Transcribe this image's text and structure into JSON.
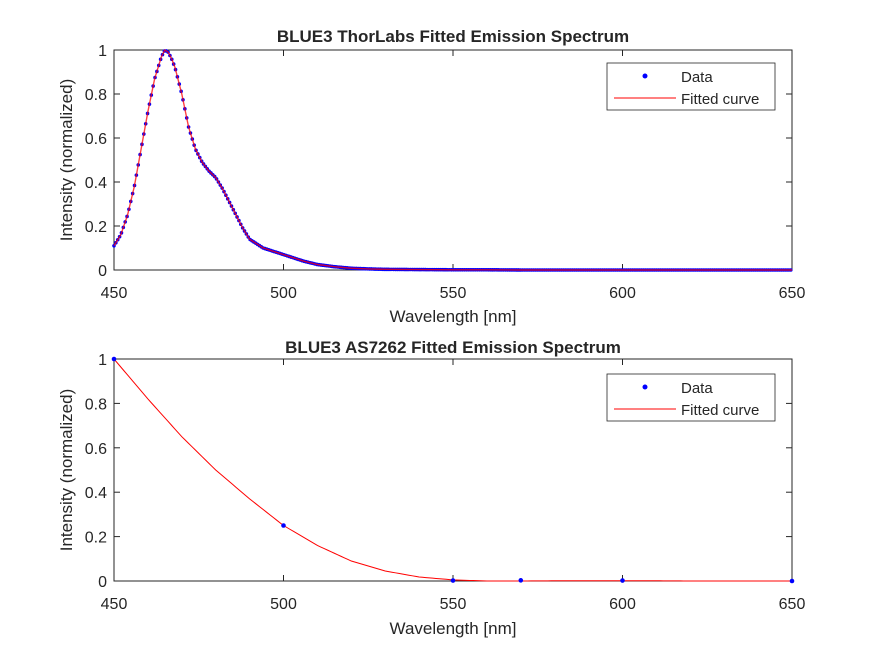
{
  "chart_data": [
    {
      "type": "line",
      "title": "BLUE3 ThorLabs Fitted Emission Spectrum",
      "xlabel": "Wavelength [nm]",
      "ylabel": "Intensity (normalized)",
      "xlim": [
        450,
        650
      ],
      "ylim": [
        0,
        1
      ],
      "xticks": [
        450,
        500,
        550,
        600,
        650
      ],
      "yticks": [
        0,
        0.2,
        0.4,
        0.6,
        0.8,
        1
      ],
      "xticklabels": [
        "450",
        "500",
        "550",
        "600",
        "650"
      ],
      "yticklabels": [
        "0",
        "0.2",
        "0.4",
        "0.6",
        "0.8",
        "1"
      ],
      "grid": false,
      "legend_position": "top-right",
      "colors": {
        "data": "#0000ff",
        "fit": "#ff0000",
        "axes": "#262626"
      },
      "series": [
        {
          "name": "Data",
          "style": "markers",
          "x": [
            450,
            452,
            454,
            456,
            458,
            460,
            462,
            464,
            465,
            466,
            467,
            468,
            470,
            472,
            474,
            476,
            478,
            480,
            482,
            484,
            486,
            488,
            490,
            494,
            498,
            502,
            506,
            510,
            515,
            520,
            525,
            530,
            540,
            550,
            560,
            570,
            580,
            590,
            600,
            610,
            620,
            630,
            640,
            650
          ],
          "y": [
            0.11,
            0.16,
            0.25,
            0.38,
            0.55,
            0.72,
            0.87,
            0.97,
            1.0,
            0.99,
            0.96,
            0.92,
            0.8,
            0.65,
            0.55,
            0.49,
            0.45,
            0.42,
            0.37,
            0.31,
            0.25,
            0.19,
            0.14,
            0.1,
            0.08,
            0.06,
            0.04,
            0.025,
            0.015,
            0.008,
            0.005,
            0.003,
            0.002,
            0.001,
            0.001,
            0.0,
            0.0,
            0.0,
            0.0,
            0.0,
            0.0,
            0.0,
            0.0,
            0.0
          ]
        },
        {
          "name": "Fitted curve",
          "style": "line",
          "x": [
            450,
            452,
            454,
            456,
            458,
            460,
            462,
            464,
            465,
            466,
            467,
            468,
            470,
            472,
            474,
            476,
            478,
            480,
            482,
            484,
            486,
            488,
            490,
            494,
            498,
            502,
            506,
            510,
            515,
            520,
            525,
            530,
            540,
            550,
            560,
            570,
            580,
            590,
            600,
            610,
            620,
            630,
            640,
            650
          ],
          "y": [
            0.11,
            0.16,
            0.25,
            0.38,
            0.55,
            0.72,
            0.87,
            0.97,
            1.0,
            0.99,
            0.96,
            0.92,
            0.8,
            0.65,
            0.55,
            0.49,
            0.45,
            0.42,
            0.37,
            0.31,
            0.25,
            0.19,
            0.14,
            0.1,
            0.08,
            0.06,
            0.04,
            0.025,
            0.015,
            0.008,
            0.005,
            0.003,
            0.002,
            0.001,
            0.001,
            0.0,
            0.0,
            0.0,
            0.0,
            0.0,
            0.0,
            0.0,
            0.0,
            0.0
          ]
        }
      ]
    },
    {
      "type": "line",
      "title": "BLUE3 AS7262 Fitted Emission Spectrum",
      "xlabel": "Wavelength [nm]",
      "ylabel": "Intensity (normalized)",
      "xlim": [
        450,
        650
      ],
      "ylim": [
        0,
        1
      ],
      "xticks": [
        450,
        500,
        550,
        600,
        650
      ],
      "yticks": [
        0,
        0.2,
        0.4,
        0.6,
        0.8,
        1
      ],
      "xticklabels": [
        "450",
        "500",
        "550",
        "600",
        "650"
      ],
      "yticklabels": [
        "0",
        "0.2",
        "0.4",
        "0.6",
        "0.8",
        "1"
      ],
      "grid": false,
      "legend_position": "top-right",
      "colors": {
        "data": "#0000ff",
        "fit": "#ff0000",
        "axes": "#262626"
      },
      "series": [
        {
          "name": "Data",
          "style": "markers",
          "x": [
            450,
            500,
            550,
            570,
            600,
            650
          ],
          "y": [
            1.0,
            0.25,
            0.002,
            0.003,
            0.002,
            0.0
          ]
        },
        {
          "name": "Fitted curve",
          "style": "line",
          "x": [
            450,
            460,
            470,
            480,
            490,
            500,
            510,
            520,
            530,
            540,
            550,
            560,
            570,
            580,
            590,
            600,
            610,
            620,
            630,
            640,
            650
          ],
          "y": [
            1.0,
            0.82,
            0.65,
            0.5,
            0.37,
            0.25,
            0.16,
            0.09,
            0.045,
            0.018,
            0.005,
            0.0,
            0.0,
            0.001,
            0.001,
            0.001,
            0.001,
            0.0,
            0.0,
            0.0,
            0.0
          ]
        }
      ]
    }
  ]
}
